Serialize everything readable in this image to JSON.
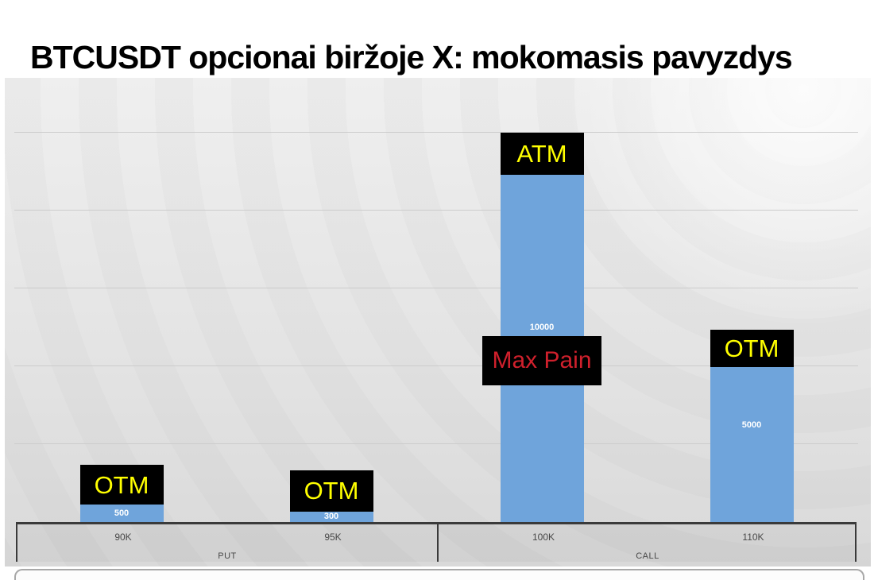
{
  "page": {
    "title": "BTCUSDT opcionai biržoje X: mokomasis pavyzdys"
  },
  "chart_data": {
    "type": "bar",
    "title": "BTCUSDT opcionai biržoje X: mokomasis pavyzdys",
    "categories": [
      "90K",
      "95K",
      "100K",
      "110K"
    ],
    "values": [
      500,
      300,
      10000,
      5000
    ],
    "value_labels": [
      "500",
      "300",
      "10000",
      "5000"
    ],
    "groups": [
      {
        "label": "PUT",
        "span": [
          "90K",
          "95K"
        ]
      },
      {
        "label": "CALL",
        "span": [
          "100K",
          "110K"
        ]
      }
    ],
    "annotations": [
      {
        "category": "90K",
        "text": "OTM",
        "text_color": "#FFFF00",
        "bg_color": "#000000",
        "placement": "above-bar"
      },
      {
        "category": "95K",
        "text": "OTM",
        "text_color": "#FFFF00",
        "bg_color": "#000000",
        "placement": "above-bar"
      },
      {
        "category": "100K",
        "text": "ATM",
        "text_color": "#FFFF00",
        "bg_color": "#000000",
        "placement": "above-bar"
      },
      {
        "category": "100K",
        "text": "Max Pain",
        "text_color": "#D0202C",
        "bg_color": "#000000",
        "placement": "on-bar"
      },
      {
        "category": "110K",
        "text": "OTM",
        "text_color": "#FFFF00",
        "bg_color": "#000000",
        "placement": "top-of-bar"
      }
    ],
    "bar_color": "#6FA4DB",
    "value_label_color": "#FFFFFF",
    "xlabel": "",
    "ylabel": "",
    "ylim": [
      0,
      12800
    ],
    "y_axis_labeled": false,
    "grid": {
      "horizontal": true,
      "vertical": false
    },
    "legend": "none"
  }
}
